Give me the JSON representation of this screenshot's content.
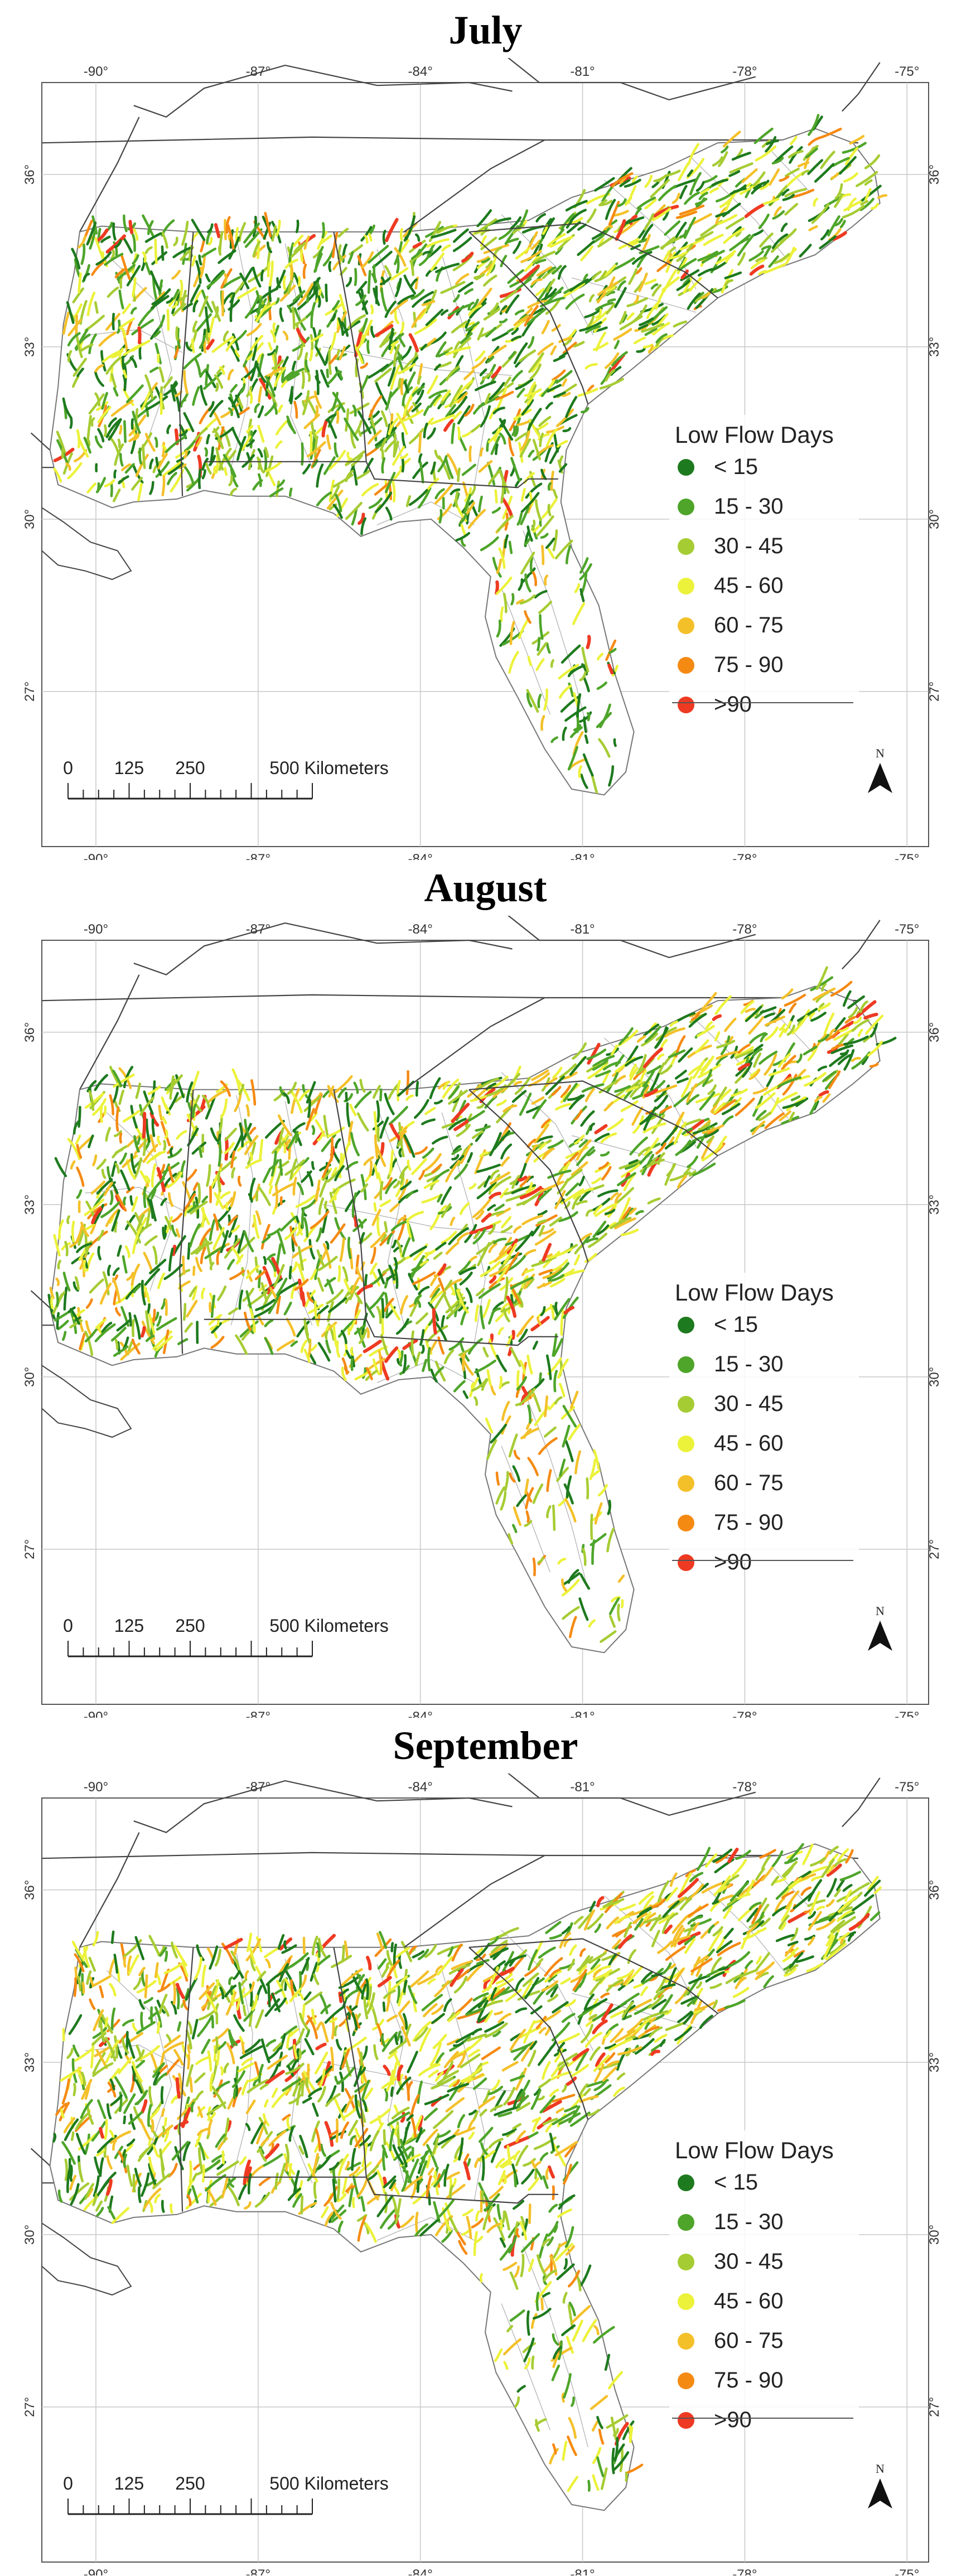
{
  "colors": {
    "lt15": "#1e7a1e",
    "15_30": "#4ea52a",
    "30_45": "#a6cc33",
    "45_60": "#ecf23a",
    "60_75": "#f4c02a",
    "75_90": "#f58a13",
    "gt90": "#ee3a22",
    "state_border": "#444444",
    "basin_border": "#b8b8b8",
    "graticule": "#c8c8c8"
  },
  "axes": {
    "lon_labels": [
      "-90°",
      "-87°",
      "-84°",
      "-81°",
      "-78°",
      "-75°"
    ],
    "lat_labels": [
      "36°",
      "33°",
      "30°",
      "27°"
    ]
  },
  "legend": {
    "title": "Low Flow Days",
    "items": [
      {
        "label": "< 15",
        "color": "#1e7a1e"
      },
      {
        "label": "15 - 30",
        "color": "#4ea52a"
      },
      {
        "label": "30 - 45",
        "color": "#a6cc33"
      },
      {
        "label": "45 - 60",
        "color": "#ecf23a"
      },
      {
        "label": "60 - 75",
        "color": "#f4c02a"
      },
      {
        "label": "75 - 90",
        "color": "#f58a13"
      },
      {
        "label": ">90",
        "color": "#ee3a22"
      }
    ]
  },
  "scale_bar": {
    "labels": [
      "0",
      "125",
      "250",
      "500 Kilometers"
    ]
  },
  "north_arrow": {
    "label": "N"
  },
  "panels": [
    {
      "title": "July"
    },
    {
      "title": "August"
    },
    {
      "title": "September"
    }
  ]
}
